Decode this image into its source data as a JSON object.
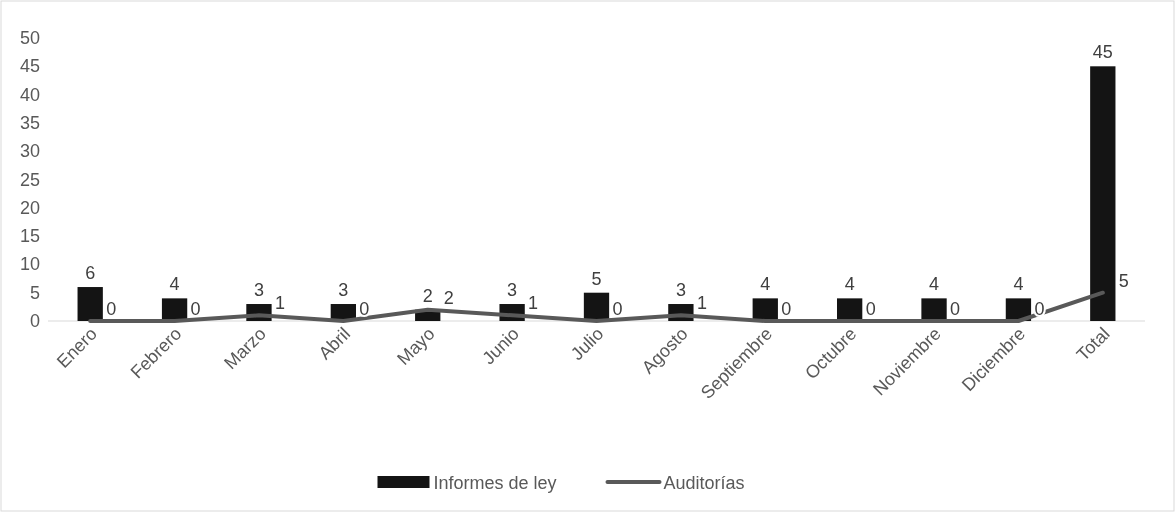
{
  "chart_data": {
    "type": "bar",
    "categories": [
      "Enero",
      "Febrero",
      "Marzo",
      "Abril",
      "Mayo",
      "Junio",
      "Julio",
      "Agosto",
      "Septiembre",
      "Octubre",
      "Noviembre",
      "Diciembre",
      "Total"
    ],
    "series": [
      {
        "name": "Informes de ley",
        "color": "#141414",
        "values": [
          6,
          4,
          3,
          3,
          2,
          3,
          5,
          3,
          4,
          4,
          4,
          4,
          45
        ]
      },
      {
        "name": "Auditorías",
        "type": "line",
        "color": "#595959",
        "values": [
          0,
          0,
          1,
          0,
          2,
          1,
          0,
          1,
          0,
          0,
          0,
          0,
          5
        ]
      }
    ],
    "ylim": [
      0,
      50
    ],
    "yticks": [
      0,
      5,
      10,
      15,
      20,
      25,
      30,
      35,
      40,
      45,
      50
    ],
    "grid": false,
    "legend": "bottom",
    "data_labels": true
  }
}
